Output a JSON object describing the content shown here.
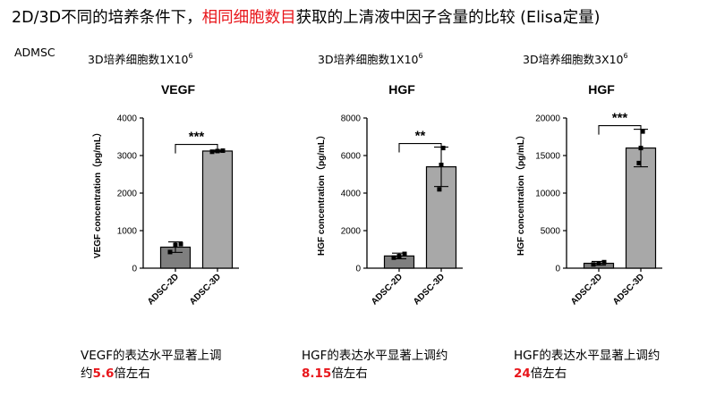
{
  "header": {
    "title_pre": "2D/3D不同的培养条件下，",
    "title_highlight": "相同细胞数目",
    "title_post": "获取的上清液中因子含量的比较 (Elisa定量)",
    "cell_type": "ADMSC"
  },
  "panels": [
    {
      "density_pre": "3D培养细胞数1X10",
      "density_exp": "6",
      "note_line1": "VEGF的表达水平显著上调",
      "note_pre": "约",
      "note_fold": "5.6",
      "note_post": "倍左右"
    },
    {
      "density_pre": "3D培养细胞数1X10",
      "density_exp": "6",
      "note_line1": "HGF的表达水平显著上调约",
      "note_pre": "",
      "note_fold": "8.15",
      "note_post": "倍左右"
    },
    {
      "density_pre": "3D培养细胞数3X10",
      "density_exp": "6",
      "note_line1": "HGF的表达水平显著上调约",
      "note_pre": "",
      "note_fold": "24",
      "note_post": "倍左右"
    }
  ],
  "chart_data": [
    {
      "type": "bar",
      "title": "VEGF",
      "ylabel": "VEGF concentration（pg/mL）",
      "categories": [
        "ADSC-2D",
        "ADSC-3D"
      ],
      "values": [
        560,
        3120
      ],
      "error": [
        140,
        25
      ],
      "points": [
        [
          430,
          620,
          640
        ],
        [
          3100,
          3120,
          3130
        ]
      ],
      "ylim": [
        0,
        4000
      ],
      "yticks": [
        "0",
        "1000",
        "2000",
        "3000",
        "4000"
      ],
      "ytick_values": [
        0,
        1000,
        2000,
        3000,
        4000
      ],
      "significance": "***",
      "bar_colors": [
        "#7f7f7f",
        "#a8a8a8"
      ]
    },
    {
      "type": "bar",
      "title": "HGF",
      "ylabel": "HGF concentration（pg/mL）",
      "categories": [
        "ADSC-2D",
        "ADSC-3D"
      ],
      "values": [
        650,
        5400
      ],
      "error": [
        150,
        1050
      ],
      "points": [
        [
          560,
          640,
          760
        ],
        [
          4200,
          5500,
          6400
        ]
      ],
      "ylim": [
        0,
        8000
      ],
      "yticks": [
        "0",
        "2000",
        "4000",
        "6000",
        "8000"
      ],
      "ytick_values": [
        0,
        2000,
        4000,
        6000,
        8000
      ],
      "significance": "**",
      "bar_colors": [
        "#7f7f7f",
        "#a8a8a8"
      ]
    },
    {
      "type": "bar",
      "title": "HGF",
      "ylabel": "HGF concentration（pg/mL）",
      "categories": [
        "ADSC-2D",
        "ADSC-3D"
      ],
      "values": [
        650,
        16000
      ],
      "error": [
        250,
        2500
      ],
      "points": [
        [
          500,
          650,
          800
        ],
        [
          14000,
          16000,
          18200
        ]
      ],
      "ylim": [
        0,
        20000
      ],
      "yticks": [
        "0",
        "5000",
        "10000",
        "15000",
        "20000"
      ],
      "ytick_values": [
        0,
        5000,
        10000,
        15000,
        20000
      ],
      "significance": "***",
      "bar_colors": [
        "#7f7f7f",
        "#a8a8a8"
      ]
    }
  ]
}
